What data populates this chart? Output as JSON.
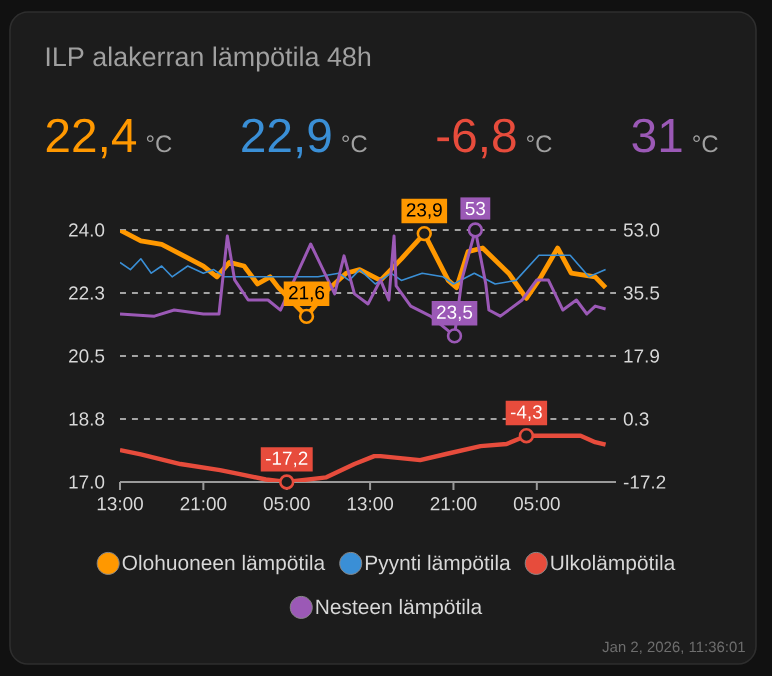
{
  "chart_data": {
    "type": "line",
    "title": "ILP alakerran lämpötila 48h",
    "annotations": [
      "22,4",
      "°C",
      "22,9",
      "°C",
      "-6,8",
      "°C",
      "31",
      "°C",
      "Jan 2, 2026, 11:36:01"
    ],
    "xlim": [
      "2025-12-31T13:00",
      "2026-01-02T12:36"
    ],
    "xticks": [
      {
        "value": "2025-12-31T13:00",
        "label": "13:00"
      },
      {
        "value": "2025-12-31T21:00",
        "label": "21:00"
      },
      {
        "value": "2026-01-01T05:00",
        "label": "05:00"
      },
      {
        "value": "2026-01-01T13:00",
        "label": "13:00"
      },
      {
        "value": "2026-01-01T21:00",
        "label": "21:00"
      },
      {
        "value": "2026-01-02T05:00",
        "label": "05:00"
      }
    ],
    "ylim": [
      17,
      24
    ],
    "yticks": [
      {
        "value": 17,
        "label": "17.0"
      },
      {
        "value": 18.75,
        "label": "18.8"
      },
      {
        "value": 20.5,
        "label": "20.5"
      },
      {
        "value": 22.25,
        "label": "22.3"
      },
      {
        "value": 24,
        "label": "24.0"
      }
    ],
    "y2lim": [
      -17.2,
      53
    ],
    "y2ticks": [
      -17.2,
      {
        "value": 0.35,
        "label": "0.3"
      },
      17.9,
      {
        "value": 35.45,
        "label": "35.5"
      },
      {
        "value": 53,
        "label": "53.0"
      }
    ],
    "grid": "y",
    "legend": "bottom",
    "series": [
      {
        "name": "Olohuoneen lämpötila",
        "color": "#ff9800",
        "x": [
          "2025-12-31T13:00",
          "2025-12-31T15:00",
          "2025-12-31T17:00",
          "2025-12-31T21:00",
          "2025-12-31T22:18",
          "2025-12-31T23:30",
          "2026-01-01T00:54",
          "2026-01-01T02:12",
          "2026-01-01T03:24",
          "2026-01-01T04:12",
          "2026-01-01T06:54",
          "2026-01-01T08:48",
          "2026-01-01T10:42",
          "2026-01-01T12:00",
          "2026-01-01T14:00",
          "2026-01-01T16:00",
          "2026-01-01T18:12",
          "2026-01-01T20:30",
          "2026-01-01T21:18",
          "2026-01-01T22:24",
          "2026-01-01T23:48",
          "2026-01-02T02:18",
          "2026-01-02T04:00",
          "2026-01-02T05:24",
          "2026-01-02T07:00",
          "2026-01-02T08:18",
          "2026-01-02T10:36",
          "2026-01-02T11:36"
        ],
        "values": [
          24.0,
          23.7,
          23.6,
          23.0,
          22.7,
          23.1,
          23.0,
          22.5,
          22.7,
          22.4,
          21.6,
          22.3,
          22.8,
          22.9,
          22.6,
          23.2,
          23.9,
          22.6,
          22.4,
          23.4,
          23.5,
          22.8,
          22.1,
          22.7,
          23.5,
          22.8,
          22.7,
          22.4
        ],
        "value_labels": [
          null,
          null,
          null,
          null,
          null,
          null,
          null,
          null,
          null,
          null,
          "21,6",
          null,
          null,
          null,
          null,
          null,
          "23,9",
          null,
          null,
          null,
          null,
          null,
          null,
          null,
          null,
          null,
          null,
          null
        ]
      },
      {
        "name": "Pyynti lämpötila",
        "color": "#3a8fd6",
        "x": [
          "2025-12-31T13:00",
          "2025-12-31T14:00",
          "2025-12-31T15:00",
          "2025-12-31T16:00",
          "2025-12-31T17:00",
          "2025-12-31T18:00",
          "2025-12-31T19:30",
          "2025-12-31T21:00",
          "2025-12-31T22:00",
          "2025-12-31T23:00",
          "2026-01-01T00:00",
          "2026-01-01T04:00",
          "2026-01-01T06:00",
          "2026-01-01T08:00",
          "2026-01-01T10:00",
          "2026-01-01T11:00",
          "2026-01-01T12:00",
          "2026-01-01T13:30",
          "2026-01-01T15:00",
          "2026-01-01T16:00",
          "2026-01-01T18:00",
          "2026-01-01T20:00",
          "2026-01-01T21:00",
          "2026-01-01T23:00",
          "2026-01-02T01:00",
          "2026-01-02T03:00",
          "2026-01-02T05:12",
          "2026-01-02T08:12",
          "2026-01-02T10:00",
          "2026-01-02T11:36"
        ],
        "values": [
          23.1,
          22.9,
          23.2,
          22.8,
          23.0,
          22.7,
          23.0,
          22.8,
          22.9,
          22.7,
          22.7,
          22.7,
          22.7,
          22.7,
          22.8,
          22.6,
          22.9,
          22.5,
          22.8,
          22.6,
          22.8,
          22.7,
          22.5,
          22.8,
          22.5,
          22.6,
          23.3,
          23.3,
          22.7,
          22.9
        ]
      },
      {
        "name": "Ulkolämpötila",
        "color": "#e74c3c",
        "axis": "y2",
        "x": [
          "2025-12-31T13:00",
          "2025-12-31T15:00",
          "2025-12-31T18:48",
          "2025-12-31T22:36",
          "2026-01-01T00:30",
          "2026-01-01T03:00",
          "2026-01-01T05:00",
          "2026-01-01T08:48",
          "2026-01-01T11:30",
          "2026-01-01T13:24",
          "2026-01-01T14:00",
          "2026-01-01T17:48",
          "2026-01-01T20:18",
          "2026-01-01T23:36",
          "2026-01-02T02:06",
          "2026-01-02T04:00",
          "2026-01-02T07:18",
          "2026-01-02T09:12",
          "2026-01-02T10:36",
          "2026-01-02T11:36"
        ],
        "values": [
          -8.3,
          -9.5,
          -12.2,
          -13.9,
          -15.0,
          -16.5,
          -17.2,
          -15.9,
          -12.2,
          -10.0,
          -10.0,
          -11.1,
          -9.4,
          -7.2,
          -6.6,
          -4.3,
          -4.3,
          -4.3,
          -6.1,
          -6.8
        ],
        "value_labels": [
          null,
          null,
          null,
          null,
          null,
          null,
          "-17,2",
          null,
          null,
          null,
          null,
          null,
          null,
          null,
          null,
          "-4,3",
          null,
          null,
          null,
          null
        ]
      },
      {
        "name": "Nesteen lämpötila",
        "color": "#9b59b6",
        "axis": "y2",
        "x": [
          "2025-12-31T13:00",
          "2025-12-31T16:18",
          "2025-12-31T18:12",
          "2025-12-31T21:00",
          "2025-12-31T22:30",
          "2025-12-31T23:18",
          "2026-01-01T00:00",
          "2026-01-01T01:18",
          "2026-01-01T03:12",
          "2026-01-01T04:24",
          "2026-01-01T05:42",
          "2026-01-01T07:18",
          "2026-01-01T08:12",
          "2026-01-01T09:36",
          "2026-01-01T10:30",
          "2026-01-01T11:30",
          "2026-01-01T12:48",
          "2026-01-01T14:00",
          "2026-01-01T14:48",
          "2026-01-01T15:18",
          "2026-01-01T15:30",
          "2026-01-01T16:54",
          "2026-01-01T18:48",
          "2026-01-01T21:06",
          "2026-01-01T21:48",
          "2026-01-01T23:06",
          "2026-01-02T00:06",
          "2026-01-02T00:24",
          "2026-01-02T01:30",
          "2026-01-02T03:36",
          "2026-01-02T05:00",
          "2026-01-02T06:06",
          "2026-01-02T07:30",
          "2026-01-02T08:48",
          "2026-01-02T09:48",
          "2026-01-02T10:36",
          "2026-01-02T11:36"
        ],
        "values": [
          29.6,
          29.0,
          30.7,
          29.6,
          29.6,
          51.3,
          39.1,
          33.5,
          33.5,
          30.7,
          null,
          49.1,
          null,
          35.2,
          45.8,
          35.2,
          32.4,
          39.1,
          33.5,
          51.3,
          37.4,
          31.8,
          29.0,
          23.5,
          39.1,
          53,
          38.0,
          30.7,
          29.0,
          33.5,
          39.1,
          39.1,
          30.7,
          33.5,
          29.6,
          31.8,
          31
        ],
        "value_labels": [
          null,
          null,
          null,
          null,
          null,
          null,
          null,
          null,
          null,
          null,
          null,
          null,
          null,
          null,
          null,
          null,
          null,
          null,
          null,
          null,
          null,
          null,
          null,
          "23,5",
          null,
          "53",
          null,
          null,
          null,
          null,
          null,
          null,
          null,
          null,
          null,
          null,
          null
        ]
      }
    ]
  }
}
